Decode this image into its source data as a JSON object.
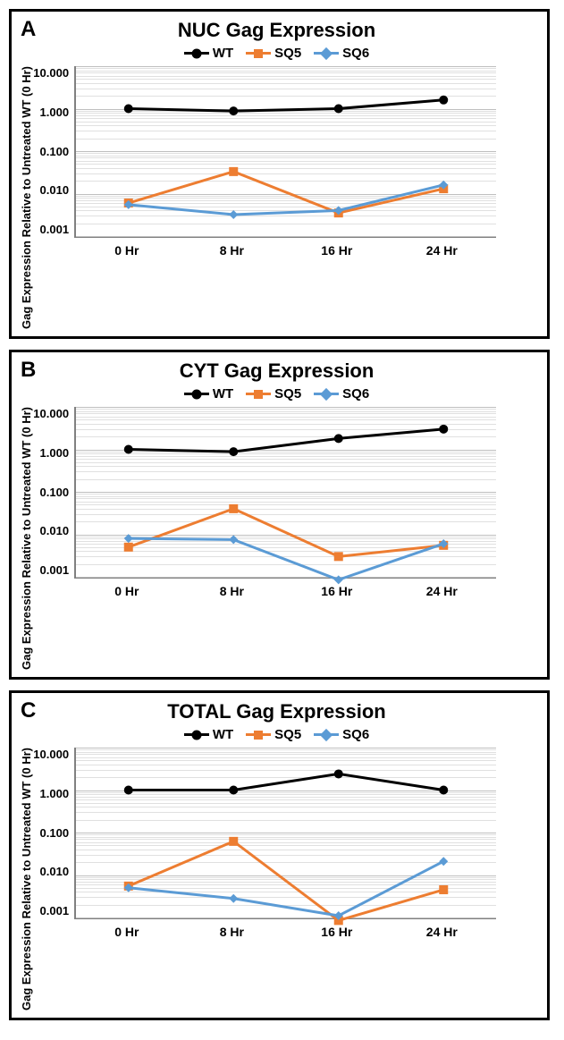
{
  "y_label": "Gag Expression Relative to Untreated WT (0 Hr)",
  "y_ticks": [
    "10.000",
    "1.000",
    "0.100",
    "0.010",
    "0.001"
  ],
  "y_log_min": -3,
  "y_log_max": 1,
  "x_categories": [
    "0 Hr",
    "8 Hr",
    "16 Hr",
    "24 Hr"
  ],
  "legend": [
    {
      "name": "WT",
      "color": "#000000",
      "marker": "circle"
    },
    {
      "name": "SQ5",
      "color": "#ed7d31",
      "marker": "square"
    },
    {
      "name": "SQ6",
      "color": "#5b9bd5",
      "marker": "diamond"
    }
  ],
  "colors": {
    "grid_major": "#bfbfbf",
    "grid_minor": "#e0e0e0",
    "axis": "#808080",
    "bg": "#ffffff",
    "panel_border": "#000000"
  },
  "line_width": 3,
  "marker_size": 10,
  "title_fontsize": 22,
  "label_fontsize": 13,
  "tick_fontsize": 13,
  "panels": [
    {
      "label": "A",
      "title": "NUC Gag Expression",
      "series": {
        "WT": [
          1.0,
          0.88,
          1.0,
          1.6
        ],
        "SQ5": [
          0.006,
          0.033,
          0.0035,
          0.013
        ],
        "SQ6": [
          0.0055,
          0.0032,
          0.004,
          0.016
        ]
      }
    },
    {
      "label": "B",
      "title": "CYT Gag Expression",
      "series": {
        "WT": [
          1.0,
          0.88,
          1.8,
          3.0
        ],
        "SQ5": [
          0.005,
          0.04,
          0.003,
          0.0055
        ],
        "SQ6": [
          0.008,
          0.0075,
          0.00085,
          0.006
        ]
      }
    },
    {
      "label": "C",
      "title": "TOTAL Gag Expression",
      "series": {
        "WT": [
          1.0,
          1.0,
          2.4,
          1.0
        ],
        "SQ5": [
          0.0055,
          0.062,
          0.00085,
          0.0045
        ],
        "SQ6": [
          0.005,
          0.0028,
          0.0011,
          0.021
        ]
      }
    }
  ]
}
